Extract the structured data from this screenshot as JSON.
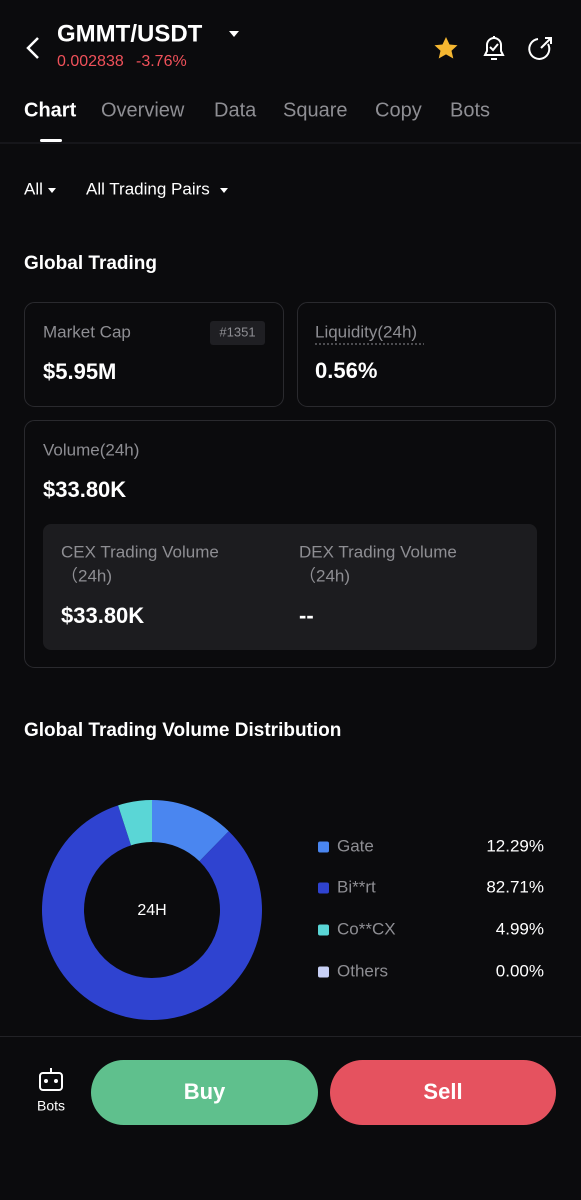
{
  "header": {
    "pair": "GMMT/USDT",
    "price": "0.002838",
    "change": "-3.76%"
  },
  "tabs": [
    "Chart",
    "Overview",
    "Data",
    "Square",
    "Copy",
    "Bots"
  ],
  "filters": [
    "All",
    "All Trading Pairs"
  ],
  "global_trading": {
    "title": "Global Trading",
    "market_cap": {
      "label": "Market Cap",
      "rank": "#1351",
      "value": "$5.95M"
    },
    "liquidity": {
      "label": "Liquidity(24h)",
      "value": "0.56%"
    },
    "volume": {
      "label": "Volume(24h)",
      "value": "$33.80K",
      "cex": {
        "label": "CEX Trading Volume",
        "period": "（24h)",
        "value": "$33.80K"
      },
      "dex": {
        "label": "DEX Trading Volume",
        "period": "（24h)",
        "value": "--"
      }
    }
  },
  "chart_data": {
    "type": "pie",
    "title": "Global Trading Volume Distribution",
    "center_label": "24H",
    "categories": [
      "Gate",
      "Bi**rt",
      "Co**CX",
      "Others"
    ],
    "values": [
      12.29,
      82.71,
      4.99,
      0
    ],
    "value_labels": [
      "12.29%",
      "82.71%",
      "4.99%",
      "0.00%"
    ],
    "colors": [
      "#4a86f0",
      "#2f43d0",
      "#5ad6d6",
      "#c8d0f5"
    ]
  },
  "footer": {
    "bots": "Bots",
    "buy": "Buy",
    "sell": "Sell"
  }
}
